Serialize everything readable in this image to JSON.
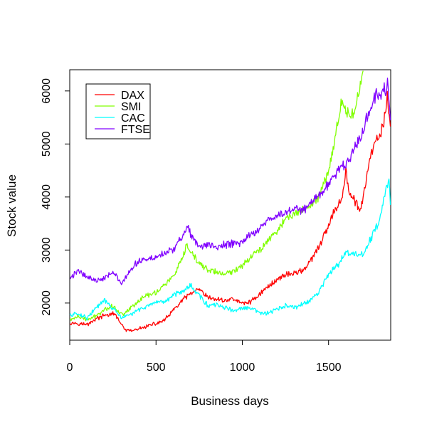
{
  "chart_data": {
    "type": "line",
    "title": "",
    "xlabel": "Business days",
    "ylabel": "Stock value",
    "xlim": [
      0,
      1860
    ],
    "ylim": [
      1300,
      6400
    ],
    "xticks": [
      0,
      500,
      1000,
      1500
    ],
    "yticks": [
      2000,
      3000,
      4000,
      5000,
      6000
    ],
    "grid": false,
    "legend": "top-left",
    "series": [
      {
        "name": "DAX",
        "color": "#FF0000",
        "points": [
          [
            0,
            1630
          ],
          [
            50,
            1620
          ],
          [
            100,
            1590
          ],
          [
            150,
            1700
          ],
          [
            200,
            1760
          ],
          [
            250,
            1800
          ],
          [
            280,
            1720
          ],
          [
            300,
            1580
          ],
          [
            320,
            1500
          ],
          [
            350,
            1470
          ],
          [
            400,
            1510
          ],
          [
            450,
            1570
          ],
          [
            500,
            1610
          ],
          [
            550,
            1680
          ],
          [
            600,
            1860
          ],
          [
            650,
            2040
          ],
          [
            700,
            2180
          ],
          [
            750,
            2250
          ],
          [
            800,
            2100
          ],
          [
            850,
            2070
          ],
          [
            900,
            2050
          ],
          [
            950,
            2080
          ],
          [
            1000,
            1990
          ],
          [
            1050,
            2030
          ],
          [
            1100,
            2170
          ],
          [
            1150,
            2310
          ],
          [
            1200,
            2440
          ],
          [
            1250,
            2540
          ],
          [
            1300,
            2560
          ],
          [
            1350,
            2620
          ],
          [
            1400,
            2800
          ],
          [
            1450,
            3100
          ],
          [
            1500,
            3450
          ],
          [
            1520,
            3620
          ],
          [
            1550,
            3850
          ],
          [
            1580,
            4000
          ],
          [
            1600,
            4500
          ],
          [
            1620,
            4050
          ],
          [
            1650,
            3950
          ],
          [
            1680,
            3730
          ],
          [
            1700,
            4000
          ],
          [
            1720,
            4350
          ],
          [
            1750,
            4850
          ],
          [
            1780,
            5050
          ],
          [
            1800,
            5200
          ],
          [
            1820,
            5400
          ],
          [
            1840,
            5900
          ],
          [
            1858,
            5330
          ]
        ]
      },
      {
        "name": "SMI",
        "color": "#80FF00",
        "points": [
          [
            0,
            1680
          ],
          [
            50,
            1750
          ],
          [
            100,
            1680
          ],
          [
            150,
            1750
          ],
          [
            200,
            1880
          ],
          [
            250,
            1950
          ],
          [
            300,
            1780
          ],
          [
            350,
            1900
          ],
          [
            400,
            2050
          ],
          [
            450,
            2150
          ],
          [
            500,
            2200
          ],
          [
            550,
            2350
          ],
          [
            600,
            2500
          ],
          [
            650,
            2800
          ],
          [
            680,
            3100
          ],
          [
            700,
            2950
          ],
          [
            750,
            2750
          ],
          [
            800,
            2630
          ],
          [
            850,
            2580
          ],
          [
            900,
            2540
          ],
          [
            950,
            2600
          ],
          [
            1000,
            2720
          ],
          [
            1050,
            2880
          ],
          [
            1100,
            3000
          ],
          [
            1150,
            3200
          ],
          [
            1200,
            3350
          ],
          [
            1250,
            3600
          ],
          [
            1300,
            3650
          ],
          [
            1350,
            3780
          ],
          [
            1400,
            3850
          ],
          [
            1450,
            4050
          ],
          [
            1500,
            4500
          ],
          [
            1530,
            5000
          ],
          [
            1560,
            5500
          ],
          [
            1580,
            5900
          ],
          [
            1600,
            5600
          ],
          [
            1630,
            5500
          ],
          [
            1660,
            5800
          ],
          [
            1680,
            6000
          ],
          [
            1700,
            6380
          ]
        ]
      },
      {
        "name": "CAC",
        "color": "#00FFFF",
        "points": [
          [
            0,
            1770
          ],
          [
            50,
            1800
          ],
          [
            100,
            1720
          ],
          [
            150,
            1900
          ],
          [
            200,
            2050
          ],
          [
            250,
            1900
          ],
          [
            300,
            1720
          ],
          [
            350,
            1780
          ],
          [
            400,
            1870
          ],
          [
            450,
            1950
          ],
          [
            500,
            1990
          ],
          [
            550,
            2020
          ],
          [
            600,
            2150
          ],
          [
            650,
            2230
          ],
          [
            700,
            2330
          ],
          [
            750,
            2150
          ],
          [
            800,
            1950
          ],
          [
            850,
            1960
          ],
          [
            900,
            1920
          ],
          [
            950,
            1850
          ],
          [
            1000,
            1900
          ],
          [
            1050,
            1900
          ],
          [
            1100,
            1820
          ],
          [
            1150,
            1800
          ],
          [
            1200,
            1880
          ],
          [
            1250,
            1950
          ],
          [
            1300,
            1910
          ],
          [
            1350,
            1980
          ],
          [
            1400,
            2050
          ],
          [
            1450,
            2250
          ],
          [
            1500,
            2550
          ],
          [
            1550,
            2700
          ],
          [
            1600,
            2950
          ],
          [
            1650,
            2920
          ],
          [
            1700,
            2900
          ],
          [
            1750,
            3250
          ],
          [
            1800,
            3600
          ],
          [
            1830,
            4100
          ],
          [
            1850,
            4350
          ],
          [
            1858,
            3850
          ]
        ]
      },
      {
        "name": "FTSE",
        "color": "#8000FF",
        "points": [
          [
            0,
            2450
          ],
          [
            50,
            2620
          ],
          [
            100,
            2500
          ],
          [
            150,
            2420
          ],
          [
            200,
            2480
          ],
          [
            250,
            2600
          ],
          [
            280,
            2450
          ],
          [
            300,
            2350
          ],
          [
            350,
            2600
          ],
          [
            400,
            2800
          ],
          [
            450,
            2820
          ],
          [
            500,
            2870
          ],
          [
            550,
            2950
          ],
          [
            600,
            3000
          ],
          [
            650,
            3250
          ],
          [
            680,
            3450
          ],
          [
            700,
            3300
          ],
          [
            750,
            3050
          ],
          [
            800,
            3100
          ],
          [
            850,
            3050
          ],
          [
            900,
            3100
          ],
          [
            950,
            3120
          ],
          [
            1000,
            3150
          ],
          [
            1050,
            3300
          ],
          [
            1100,
            3400
          ],
          [
            1150,
            3550
          ],
          [
            1200,
            3650
          ],
          [
            1250,
            3700
          ],
          [
            1300,
            3800
          ],
          [
            1350,
            3750
          ],
          [
            1400,
            3900
          ],
          [
            1450,
            4050
          ],
          [
            1500,
            4250
          ],
          [
            1550,
            4500
          ],
          [
            1600,
            4600
          ],
          [
            1650,
            4900
          ],
          [
            1700,
            5250
          ],
          [
            1750,
            5800
          ],
          [
            1780,
            5950
          ],
          [
            1800,
            5900
          ],
          [
            1830,
            6050
          ],
          [
            1845,
            6150
          ],
          [
            1858,
            5450
          ]
        ]
      }
    ]
  }
}
